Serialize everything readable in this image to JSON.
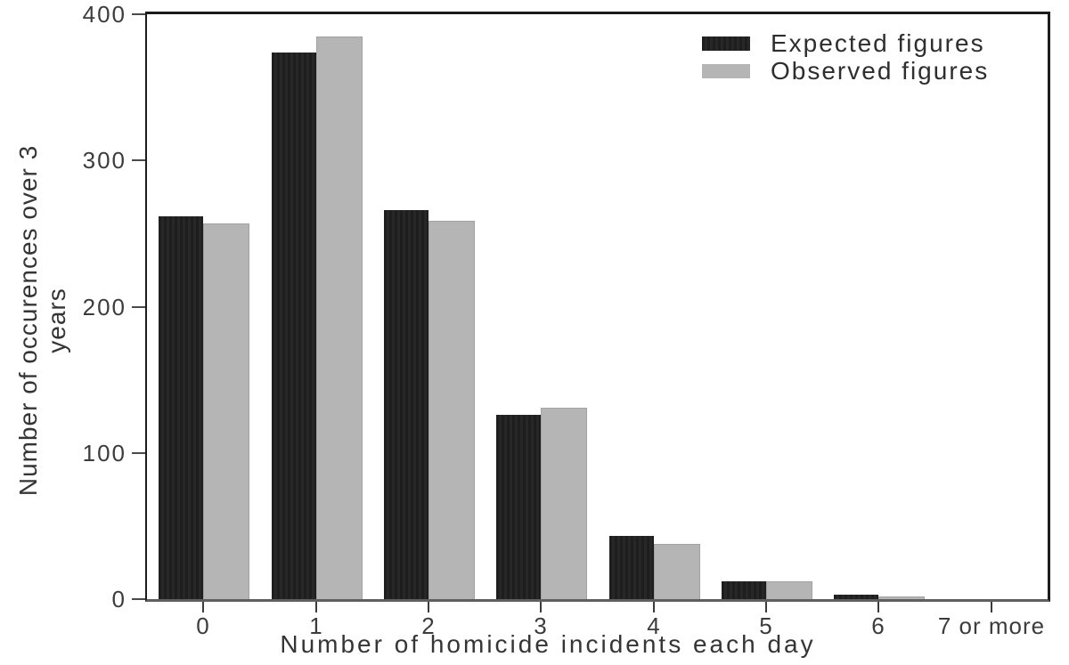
{
  "chart_data": {
    "type": "bar",
    "title": "",
    "xlabel": "Number of homicide incidents each day",
    "ylabel": "Number of occurences over 3 years",
    "categories": [
      "0",
      "1",
      "2",
      "3",
      "4",
      "5",
      "6",
      "7 or more"
    ],
    "series": [
      {
        "name": "Expected figures",
        "color": "#212121",
        "values": [
          262,
          374,
          266,
          126,
          43,
          12,
          3,
          0
        ]
      },
      {
        "name": "Observed figures",
        "color": "#b5b5b5",
        "values": [
          257,
          385,
          259,
          131,
          38,
          12,
          2,
          0
        ]
      }
    ],
    "ylim": [
      0,
      400
    ],
    "yticks": [
      0,
      100,
      200,
      300,
      400
    ],
    "grid": false,
    "legend_position": "top-right",
    "colors": {
      "background": "#ffffff",
      "frame": "#1c1c1c",
      "text": "#3c3c3c"
    }
  }
}
